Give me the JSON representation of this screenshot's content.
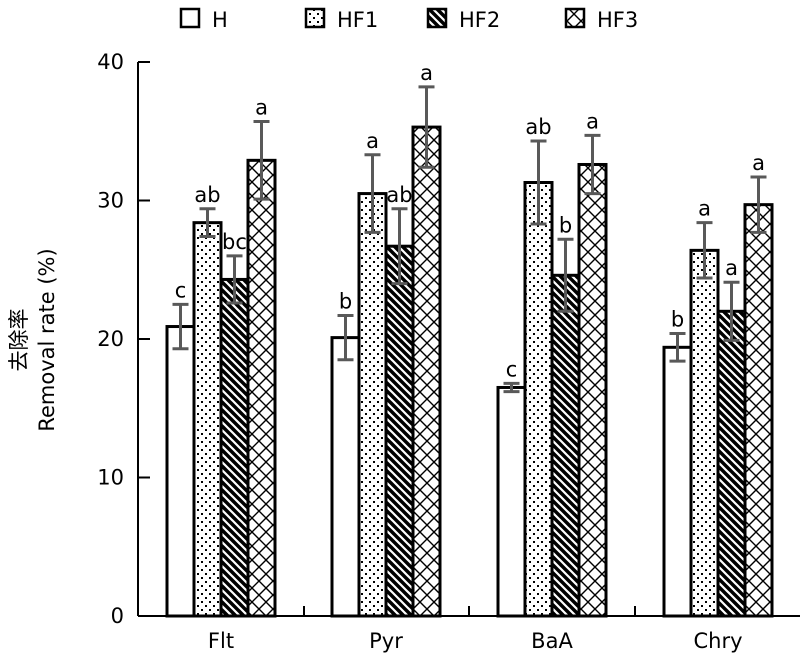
{
  "chart_data": {
    "type": "bar",
    "title": "",
    "xlabel": "",
    "ylabel_cn": "去除率",
    "ylabel": "Removal rate (%)",
    "ylim": [
      0,
      40
    ],
    "yticks": [
      "0",
      "10",
      "20",
      "30",
      "40"
    ],
    "categories": [
      "Flt",
      "Pyr",
      "BaA",
      "Chry"
    ],
    "legend_position": "top",
    "series": [
      {
        "name": "H",
        "pattern": "blank",
        "values": [
          20.9,
          20.1,
          16.5,
          19.4
        ],
        "errors": [
          1.6,
          1.6,
          0.3,
          1.0
        ],
        "letters": [
          "c",
          "b",
          "c",
          "b"
        ]
      },
      {
        "name": "HF1",
        "pattern": "dots",
        "values": [
          28.4,
          30.5,
          31.3,
          26.4
        ],
        "errors": [
          1.0,
          2.8,
          3.0,
          2.0
        ],
        "letters": [
          "ab",
          "a",
          "ab",
          "a"
        ]
      },
      {
        "name": "HF2",
        "pattern": "diagonal",
        "values": [
          24.3,
          26.7,
          24.6,
          22.0
        ],
        "errors": [
          1.7,
          2.7,
          2.6,
          2.1
        ],
        "letters": [
          "bc",
          "ab",
          "b",
          "a"
        ]
      },
      {
        "name": "HF3",
        "pattern": "zigzag",
        "values": [
          32.9,
          35.3,
          32.6,
          29.7
        ],
        "errors": [
          2.8,
          2.9,
          2.1,
          2.0
        ],
        "letters": [
          "a",
          "a",
          "a",
          "a"
        ]
      }
    ],
    "colors": {
      "bar_stroke": "#000000",
      "error_bar": "#595959"
    }
  }
}
